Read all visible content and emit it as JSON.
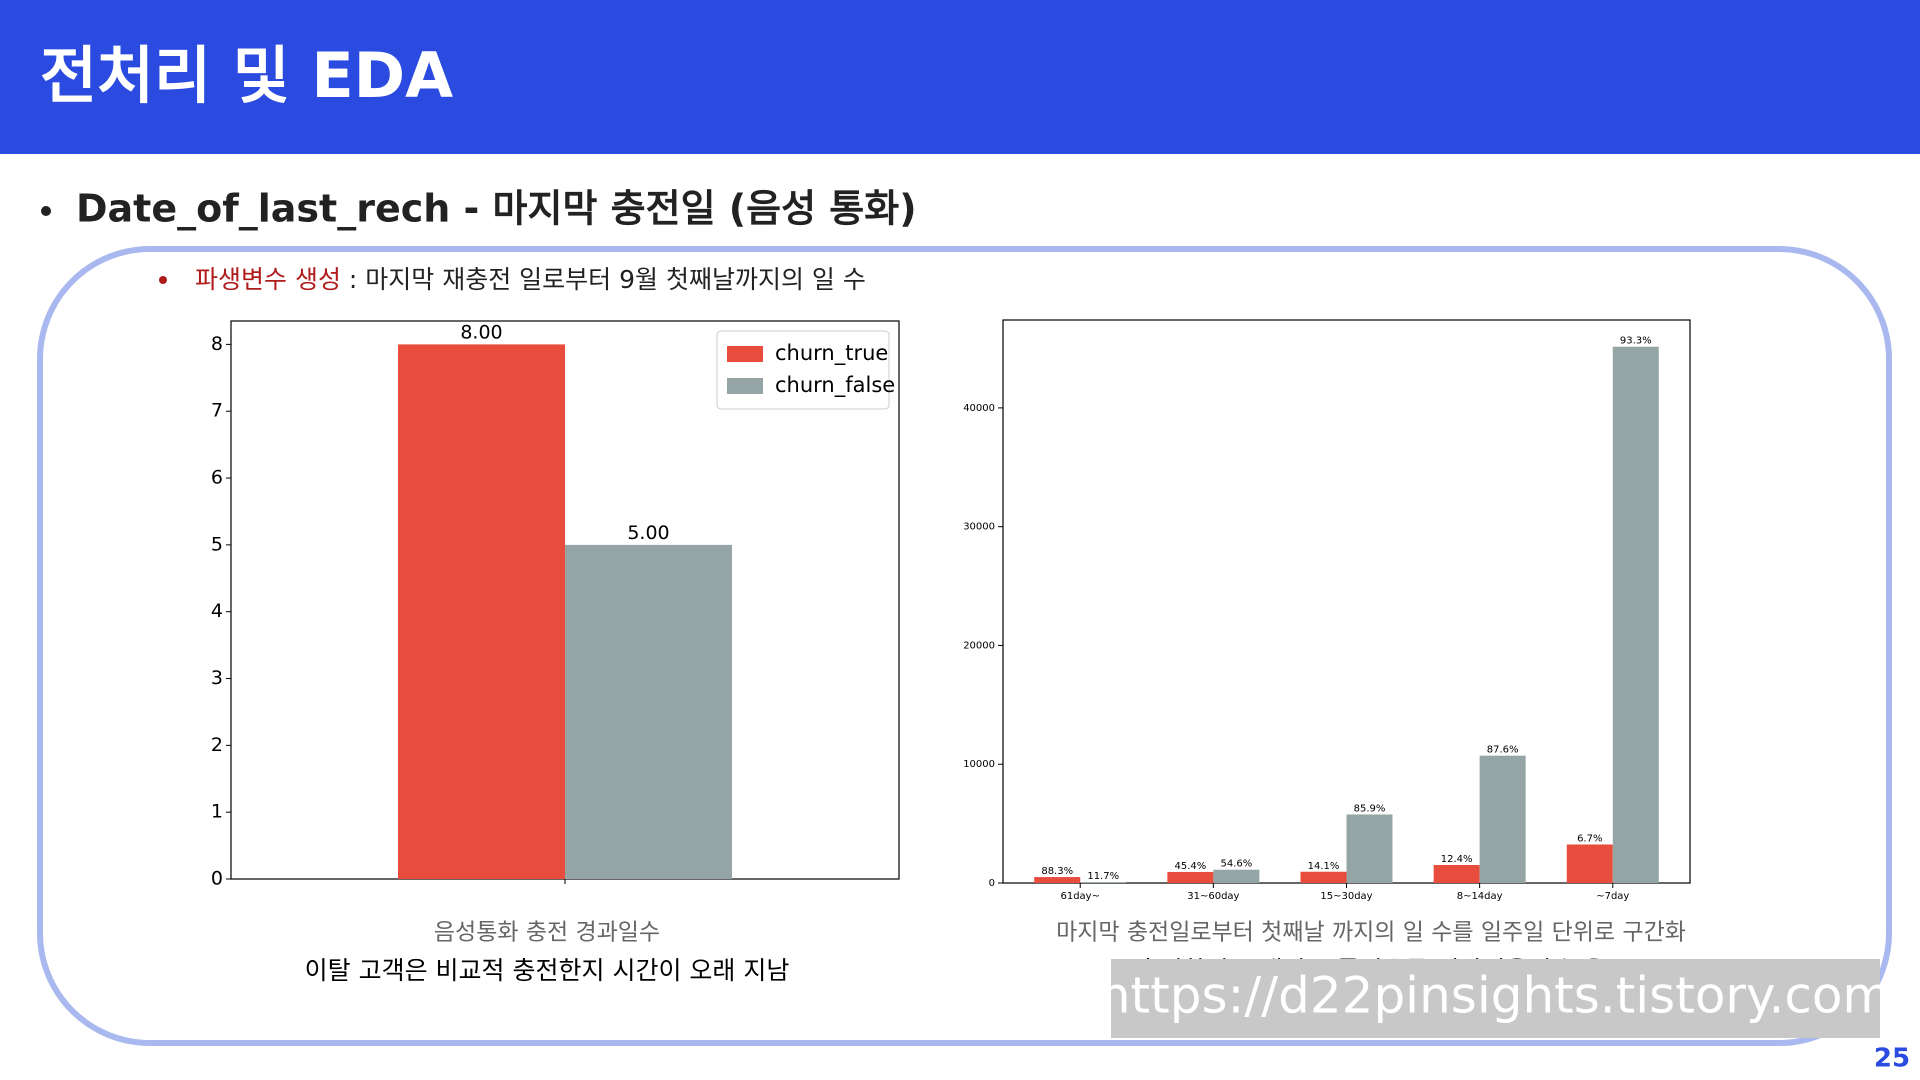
{
  "header": {
    "title": "전처리 및 EDA"
  },
  "heading": "Date_of_last_rech - 마지막 충전일 (음성 통화)",
  "bullet": {
    "label": "파생변수 생성",
    "text": " : 마지막 재충전 일로부터 9월 첫째날까지의 일 수"
  },
  "chart_data": [
    {
      "type": "bar",
      "categories": [
        null
      ],
      "series": [
        {
          "name": "churn_true",
          "color": "#e74c3c",
          "values": [
            8
          ],
          "value_labels": [
            "8.00"
          ]
        },
        {
          "name": "churn_false",
          "color": "#95a5a6",
          "values": [
            5
          ],
          "value_labels": [
            "5.00"
          ]
        }
      ],
      "ylim": [
        0,
        8.35
      ],
      "yticks": [
        0,
        1,
        2,
        3,
        4,
        5,
        6,
        7,
        8
      ],
      "legend": "upper right",
      "caption": "음성통화 충전 경과일수",
      "note": "이탈 고객은 비교적 충전한지 시간이 오래 지남"
    },
    {
      "type": "bar",
      "categories": [
        "61day~",
        "31~60day",
        "15~30day",
        "8~14day",
        "~7day"
      ],
      "series": [
        {
          "color": "#e74c3c",
          "values": [
            500,
            930,
            947,
            1517,
            3242
          ],
          "share_labels": [
            "88.3%",
            "45.4%",
            "14.1%",
            "12.4%",
            "6.7%"
          ]
        },
        {
          "color": "#95a5a6",
          "values": [
            66,
            1118,
            5770,
            10720,
            45150
          ],
          "share_labels": [
            "11.7%",
            "54.6%",
            "85.9%",
            "87.6%",
            "93.3%"
          ]
        }
      ],
      "ylim": [
        0,
        47400
      ],
      "yticks": [
        0,
        10000,
        20000,
        30000,
        40000
      ],
      "caption": "마지막 충전일로부터 첫째날 까지의 일 수를 일주일 단위로 구간화",
      "note": "충전한지 오래된 그룹일수록 이탈비율이 높음"
    }
  ],
  "watermark": "https://d22pinsights.tistory.com",
  "page_number": "25"
}
